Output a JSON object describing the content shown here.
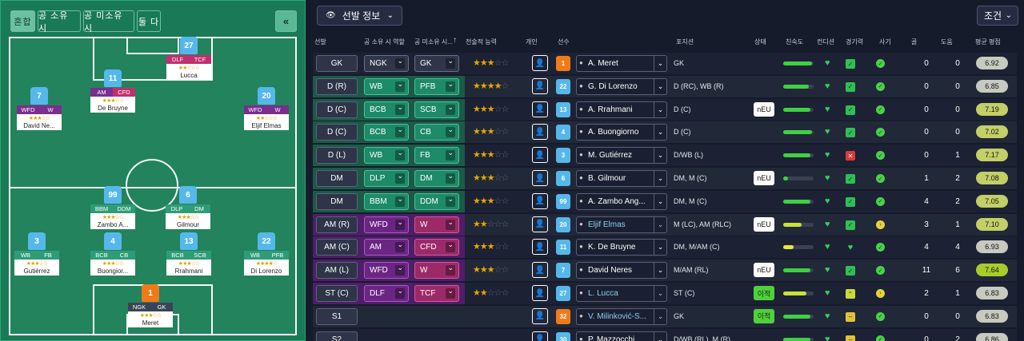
{
  "left_panel": {
    "tabs": [
      "혼합",
      "공 소유 시",
      "공 미소유 시",
      "둘 다"
    ],
    "collapse_icon": "double-chevron-left-icon",
    "players": [
      {
        "id": "meret",
        "number": "1",
        "name": "Meret",
        "roles": [
          "NGK",
          "GK"
        ],
        "stars": "★★★☆☆",
        "gk": true
      },
      {
        "id": "gutierrez",
        "number": "3",
        "name": "Gutiérrez",
        "roles": [
          "WB",
          "FB"
        ],
        "stars": "★★★☆☆"
      },
      {
        "id": "buongiorno",
        "number": "4",
        "name": "Buongior...",
        "roles": [
          "BCB",
          "CB"
        ],
        "stars": "★★★☆☆"
      },
      {
        "id": "rrahmani",
        "number": "13",
        "name": "Rrahmani",
        "roles": [
          "BCB",
          "SCB"
        ],
        "stars": "★★★☆☆"
      },
      {
        "id": "dilorenzo",
        "number": "22",
        "name": "Di Lorenzo",
        "roles": [
          "WB",
          "PFB"
        ],
        "stars": "★★★★☆"
      },
      {
        "id": "zambo",
        "number": "99",
        "name": "Zambo A...",
        "roles": [
          "BBM",
          "DDM"
        ],
        "stars": "★★★☆☆"
      },
      {
        "id": "gilmour",
        "number": "6",
        "name": "Gilmour",
        "roles": [
          "DLP",
          "DM"
        ],
        "stars": "★★★☆☆"
      },
      {
        "id": "neres",
        "number": "7",
        "name": "David Ne...",
        "roles": [
          "WFD",
          "W"
        ],
        "stars": "★★★☆☆"
      },
      {
        "id": "debruyne",
        "number": "11",
        "name": "De Bruyne",
        "roles": [
          "AM",
          "CFD"
        ],
        "stars": "★★★☆☆"
      },
      {
        "id": "lucca",
        "number": "27",
        "name": "Lucca",
        "roles": [
          "DLF",
          "TCF"
        ],
        "stars": "★★☆☆☆"
      },
      {
        "id": "elmas",
        "number": "20",
        "name": "Eljif Elmas",
        "roles": [
          "WFD",
          "W"
        ],
        "stars": "★★☆☆☆"
      }
    ]
  },
  "toolbar": {
    "view_label": "선발 정보",
    "view_icon": "eye-icon",
    "filter_label": "조건"
  },
  "columns": [
    "선발",
    "공 소유 시 역할",
    "공 미소유 시...",
    "전술적 능력",
    "개인",
    "선수",
    "포지션",
    "상태",
    "친숙도",
    "컨디션",
    "경기력",
    "사기",
    "골",
    "도움",
    "평균 평점"
  ],
  "sort_arrow": "↑",
  "rows": [
    {
      "pos": "GK",
      "role_in": "NGK",
      "role_out": "GK",
      "stars": "★★★☆☆",
      "number": "1",
      "name": "A. Meret",
      "position": "GK",
      "status": "",
      "fit": 0.95,
      "sharp": "good",
      "morale": "good",
      "goals": "0",
      "assists": "0",
      "rating": "6.92",
      "gk": true,
      "tone": "gk"
    },
    {
      "pos": "D (R)",
      "role_in": "WB",
      "role_out": "PFB",
      "stars": "★★★★☆",
      "number": "22",
      "name": "G. Di Lorenzo",
      "position": "D (RC), WB (R)",
      "status": "",
      "fit": 0.85,
      "sharp": "good",
      "morale": "good",
      "goals": "0",
      "assists": "0",
      "rating": "6.85",
      "tone": "wb"
    },
    {
      "pos": "D (C)",
      "role_in": "BCB",
      "role_out": "SCB",
      "stars": "★★★☆☆",
      "number": "13",
      "name": "A. Rrahmani",
      "position": "D (C)",
      "status": "nEU",
      "fit": 0.9,
      "sharp": "good",
      "morale": "good",
      "goals": "0",
      "assists": "0",
      "rating": "7.19",
      "tone": "wb"
    },
    {
      "pos": "D (C)",
      "role_in": "BCB",
      "role_out": "CB",
      "stars": "★★★☆☆",
      "number": "4",
      "name": "A. Buongiorno",
      "position": "D (C)",
      "status": "",
      "fit": 0.95,
      "sharp": "good",
      "morale": "good",
      "goals": "0",
      "assists": "0",
      "rating": "7.02",
      "tone": "wb"
    },
    {
      "pos": "D (L)",
      "role_in": "WB",
      "role_out": "FB",
      "stars": "★★★☆☆",
      "number": "3",
      "name": "M. Gutiérrez",
      "position": "D/WB (L)",
      "status": "",
      "fit": 0.9,
      "sharp": "bad",
      "morale": "good",
      "goals": "0",
      "assists": "1",
      "rating": "7.17",
      "tone": "wb"
    },
    {
      "pos": "DM",
      "role_in": "DLP",
      "role_out": "DM",
      "stars": "★★★☆☆",
      "number": "6",
      "name": "B. Gilmour",
      "position": "DM, M (C)",
      "status": "nEU",
      "fit": 0.15,
      "sharp": "good",
      "morale": "good",
      "goals": "1",
      "assists": "2",
      "rating": "7.08",
      "tone": "wb"
    },
    {
      "pos": "DM",
      "role_in": "BBM",
      "role_out": "DDM",
      "stars": "★★★☆☆",
      "number": "99",
      "name": "A. Zambo Ang...",
      "position": "DM, M (C)",
      "status": "",
      "fit": 0.9,
      "sharp": "good",
      "morale": "good",
      "goals": "4",
      "assists": "2",
      "rating": "7.05",
      "tone": "wb"
    },
    {
      "pos": "AM (R)",
      "role_in": "WFD",
      "role_out": "W",
      "stars": "★★☆☆☆",
      "number": "20",
      "name": "Eljif Elmas",
      "position": "M (LC), AM (RLC)",
      "status": "nEU",
      "fit": 0.6,
      "sharp": "good",
      "morale": "ok",
      "goals": "3",
      "assists": "1",
      "rating": "7.10",
      "tone": "pur",
      "loan": true
    },
    {
      "pos": "AM (C)",
      "role_in": "AM",
      "role_out": "CFD",
      "stars": "★★★☆☆",
      "number": "11",
      "name": "K. De Bruyne",
      "position": "DM, M/AM (C)",
      "status": "",
      "fit": 0.35,
      "sharp": "heart",
      "morale": "good",
      "goals": "4",
      "assists": "4",
      "rating": "6.93",
      "tone": "pink"
    },
    {
      "pos": "AM (L)",
      "role_in": "WFD",
      "role_out": "W",
      "stars": "★★★☆☆",
      "number": "7",
      "name": "David Neres",
      "position": "M/AM (RL)",
      "status": "nEU",
      "fit": 0.9,
      "sharp": "good",
      "morale": "good",
      "goals": "11",
      "assists": "6",
      "rating": "7.64",
      "tone": "pur"
    },
    {
      "pos": "ST (C)",
      "role_in": "DLF",
      "role_out": "TCF",
      "stars": "★★☆☆☆",
      "number": "27",
      "name": "L. Lucca",
      "position": "ST (C)",
      "status": "이적",
      "fit": 0.75,
      "sharp": "up",
      "morale": "ok",
      "goals": "2",
      "assists": "1",
      "rating": "6.83",
      "tone": "pink",
      "loan": true
    },
    {
      "pos": "S1",
      "role_in": "",
      "role_out": "",
      "stars": "",
      "number": "32",
      "name": "V. Milinković-S...",
      "position": "GK",
      "status": "이적",
      "fit": 0.9,
      "sharp": "mid",
      "morale": "good",
      "goals": "0",
      "assists": "0",
      "rating": "6.83",
      "gk": true,
      "tone": "none",
      "loan": true
    },
    {
      "pos": "S2",
      "role_in": "",
      "role_out": "",
      "stars": "",
      "number": "30",
      "name": "P. Mazzocchi",
      "position": "D/WB (RL), M (R)",
      "status": "",
      "fit": 0.9,
      "sharp": "mid",
      "morale": "good",
      "goals": "0",
      "assists": "2",
      "rating": "6.86",
      "tone": "none"
    }
  ]
}
